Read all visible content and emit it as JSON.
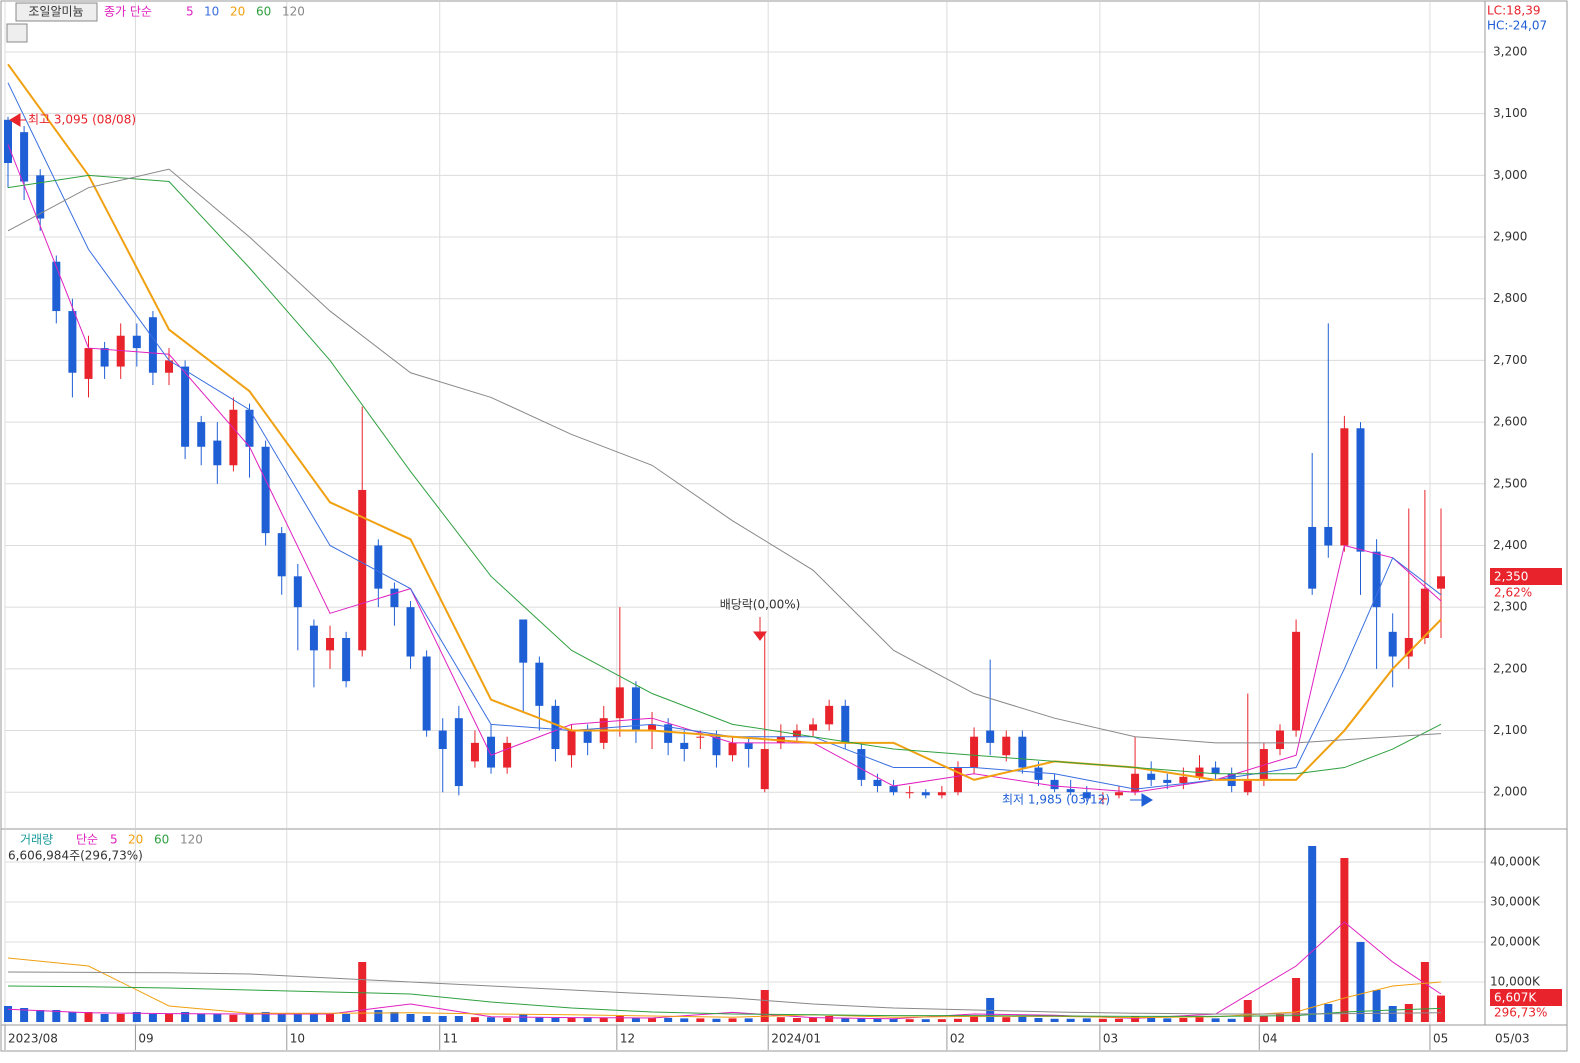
{
  "chart_data": [
    {
      "type": "candlestick",
      "title": "조일알미늄",
      "ma_label": "종가 단순",
      "up_color": "#e8232b",
      "down_color": "#1f5fd6",
      "lc_label": "LC:18,39",
      "hc_label": "HC:-24,07",
      "last_price": {
        "value": 2350,
        "label": "2,350"
      },
      "change_label": "2,62%",
      "annotations": [
        "최고 3,095 (08/08)",
        "배당락(0,00%)",
        "최저 1,985 (03/12)"
      ],
      "ylim": [
        1942,
        3281
      ],
      "yticks": [
        {
          "value": 2000,
          "label": "2,000"
        },
        {
          "value": 2100,
          "label": "2,100"
        },
        {
          "value": 2200,
          "label": "2,200"
        },
        {
          "value": 2300,
          "label": "2,300"
        },
        {
          "value": 2400,
          "label": "2,400"
        },
        {
          "value": 2500,
          "label": "2,500"
        },
        {
          "value": 2600,
          "label": "2,600"
        },
        {
          "value": 2700,
          "label": "2,700"
        },
        {
          "value": 2800,
          "label": "2,800"
        },
        {
          "value": 2900,
          "label": "2,900"
        },
        {
          "value": 3000,
          "label": "3,000"
        },
        {
          "value": 3100,
          "label": "3,100"
        },
        {
          "value": 3200,
          "label": "3,200"
        }
      ],
      "open": [
        3090,
        3070,
        3000,
        2860,
        2780,
        2670,
        2720,
        2690,
        2740,
        2770,
        2680,
        2690,
        2600,
        2570,
        2530,
        2620,
        2560,
        2420,
        2350,
        2270,
        2230,
        2250,
        2230,
        2400,
        2330,
        2300,
        2220,
        2100,
        2120,
        2050,
        2090,
        2040,
        2280,
        2210,
        2140,
        2060,
        2100,
        2080,
        2120,
        2170,
        2100,
        2110,
        2080,
        2090,
        2090,
        2060,
        2080,
        2005,
        2080,
        2090,
        2100,
        2110,
        2140,
        2070,
        2020,
        2010,
        2000,
        2000,
        1995,
        2000,
        2040,
        2100,
        2060,
        2090,
        2040,
        2020,
        2005,
        2000,
        1990,
        1995,
        2000,
        2030,
        2020,
        2015,
        2025,
        2040,
        2030,
        2000,
        2020,
        2070,
        2100,
        2430,
        2430,
        2400,
        2590,
        2390,
        2260,
        2220,
        2250,
        2330
      ],
      "high": [
        3095,
        3080,
        3010,
        2870,
        2800,
        2740,
        2730,
        2760,
        2760,
        2780,
        2720,
        2700,
        2610,
        2600,
        2640,
        2630,
        2570,
        2430,
        2370,
        2280,
        2270,
        2260,
        2625,
        2410,
        2340,
        2310,
        2230,
        2120,
        2140,
        2100,
        2110,
        2090,
        2280,
        2220,
        2150,
        2110,
        2110,
        2140,
        2300,
        2180,
        2130,
        2120,
        2100,
        2100,
        2100,
        2090,
        2090,
        2260,
        2110,
        2110,
        2120,
        2150,
        2150,
        2080,
        2030,
        2020,
        2010,
        2005,
        2010,
        2050,
        2105,
        2215,
        2100,
        2100,
        2050,
        2030,
        2020,
        2010,
        2000,
        2010,
        2090,
        2050,
        2030,
        2040,
        2060,
        2050,
        2040,
        2160,
        2080,
        2110,
        2280,
        2550,
        2760,
        2610,
        2600,
        2410,
        2290,
        2460,
        2490,
        2460
      ],
      "low": [
        2980,
        2960,
        2910,
        2760,
        2640,
        2640,
        2670,
        2670,
        2690,
        2660,
        2660,
        2540,
        2530,
        2500,
        2520,
        2510,
        2400,
        2320,
        2230,
        2170,
        2200,
        2170,
        2220,
        2300,
        2270,
        2200,
        2090,
        2000,
        1995,
        2040,
        2030,
        2030,
        2130,
        2100,
        2050,
        2040,
        2060,
        2070,
        2090,
        2080,
        2070,
        2060,
        2050,
        2070,
        2040,
        2050,
        2040,
        2000,
        2070,
        2080,
        2090,
        2100,
        2070,
        2010,
        2000,
        1995,
        1990,
        1990,
        1990,
        1995,
        2030,
        2060,
        2050,
        2030,
        2010,
        2000,
        1995,
        1985,
        1980,
        1990,
        1995,
        2010,
        2005,
        2005,
        2020,
        2020,
        2000,
        1995,
        2010,
        2060,
        2090,
        2320,
        2380,
        2390,
        2320,
        2200,
        2170,
        2200,
        2240,
        2250
      ],
      "close": [
        3020,
        2990,
        2930,
        2780,
        2680,
        2720,
        2690,
        2740,
        2720,
        2680,
        2700,
        2560,
        2560,
        2530,
        2620,
        2560,
        2420,
        2350,
        2300,
        2230,
        2250,
        2180,
        2490,
        2330,
        2300,
        2220,
        2100,
        2070,
        2010,
        2080,
        2040,
        2080,
        2210,
        2140,
        2070,
        2100,
        2080,
        2120,
        2170,
        2100,
        2110,
        2080,
        2070,
        2090,
        2060,
        2080,
        2070,
        2070,
        2090,
        2100,
        2110,
        2140,
        2080,
        2020,
        2010,
        2000,
        2000,
        1995,
        2000,
        2040,
        2090,
        2080,
        2090,
        2040,
        2020,
        2005,
        2000,
        1990,
        1990,
        2000,
        2030,
        2020,
        2015,
        2025,
        2040,
        2030,
        2010,
        2020,
        2070,
        2100,
        2260,
        2330,
        2400,
        2590,
        2390,
        2300,
        2220,
        2250,
        2330,
        2350
      ],
      "ma_x": [
        0,
        5,
        10,
        15,
        20,
        25,
        30,
        35,
        40,
        45,
        50,
        55,
        60,
        65,
        70,
        75,
        80,
        83,
        86,
        89
      ],
      "ma": [
        {
          "name": "5",
          "color": "#e020c0",
          "values": [
            3050,
            2720,
            2710,
            2560,
            2290,
            2330,
            2060,
            2110,
            2120,
            2080,
            2080,
            2010,
            2030,
            2010,
            2000,
            2020,
            2060,
            2400,
            2380,
            2310
          ]
        },
        {
          "name": "10",
          "color": "#3a6fe0",
          "values": [
            3150,
            2880,
            2700,
            2620,
            2400,
            2330,
            2110,
            2100,
            2110,
            2090,
            2090,
            2040,
            2040,
            2030,
            2005,
            2020,
            2040,
            2200,
            2380,
            2320
          ]
        },
        {
          "name": "20",
          "color": "#f0a010",
          "values": [
            3180,
            3000,
            2750,
            2650,
            2470,
            2410,
            2150,
            2100,
            2100,
            2090,
            2080,
            2080,
            2020,
            2050,
            2040,
            2020,
            2020,
            2100,
            2200,
            2280
          ]
        },
        {
          "name": "60",
          "color": "#30a040",
          "values": [
            2980,
            3000,
            2990,
            2850,
            2700,
            2520,
            2350,
            2230,
            2160,
            2110,
            2090,
            2070,
            2060,
            2050,
            2040,
            2030,
            2030,
            2040,
            2070,
            2110
          ]
        },
        {
          "name": "120",
          "color": "#888888",
          "values": [
            2910,
            2980,
            3010,
            2900,
            2780,
            2680,
            2640,
            2580,
            2530,
            2440,
            2360,
            2230,
            2160,
            2120,
            2090,
            2080,
            2080,
            2085,
            2090,
            2095
          ]
        }
      ]
    },
    {
      "type": "bar",
      "title": "거래량",
      "ma_label": "단순",
      "info": "6,606,984주(296,73%)",
      "last_volume": {
        "value": 6607,
        "label": "6,607K"
      },
      "ratio_label": "296,73%",
      "last_date": "05/03",
      "ylim": [
        0,
        47500
      ],
      "yticks": [
        {
          "value": 10000,
          "label": "10,000K"
        },
        {
          "value": 20000,
          "label": "20,000K"
        },
        {
          "value": 30000,
          "label": "30,000K"
        },
        {
          "value": 40000,
          "label": "40,000K"
        }
      ],
      "xticks": [
        {
          "value": 0,
          "label": "2023/08"
        },
        {
          "value": 8.1,
          "label": "09"
        },
        {
          "value": 17.5,
          "label": "10"
        },
        {
          "value": 27,
          "label": "11"
        },
        {
          "value": 38,
          "label": "12"
        },
        {
          "value": 47.4,
          "label": "2024/01"
        },
        {
          "value": 58.5,
          "label": "02"
        },
        {
          "value": 68,
          "label": "03"
        },
        {
          "value": 77.9,
          "label": "04"
        },
        {
          "value": 88.5,
          "label": "05"
        }
      ],
      "values": [
        4000,
        3500,
        3000,
        3000,
        2500,
        2500,
        2000,
        2000,
        2500,
        2000,
        2000,
        2500,
        2000,
        2000,
        1800,
        2000,
        2500,
        2000,
        2000,
        2000,
        2000,
        2000,
        15000,
        3000,
        2500,
        2000,
        1500,
        1500,
        1500,
        1200,
        1200,
        1000,
        2000,
        1200,
        1000,
        1000,
        1200,
        1000,
        1500,
        1000,
        1000,
        1000,
        900,
        900,
        800,
        900,
        900,
        8000,
        1200,
        1000,
        1200,
        1500,
        1000,
        900,
        800,
        800,
        700,
        700,
        700,
        800,
        1500,
        6000,
        1200,
        1500,
        1000,
        800,
        800,
        900,
        800,
        800,
        1500,
        1000,
        900,
        1000,
        1200,
        900,
        800,
        5500,
        1500,
        2000,
        11000,
        44000,
        4500,
        41000,
        20000,
        8000,
        4000,
        4500,
        15000,
        6607
      ],
      "ma_x": [
        0,
        5,
        10,
        15,
        20,
        25,
        30,
        35,
        40,
        45,
        50,
        55,
        60,
        65,
        70,
        75,
        80,
        83,
        86,
        89
      ],
      "ma": [
        {
          "name": "5",
          "color": "#e020c0",
          "values": [
            3200,
            2300,
            2100,
            2000,
            2000,
            4500,
            1300,
            1100,
            1000,
            2400,
            1100,
            800,
            2000,
            1700,
            900,
            2000,
            14000,
            25000,
            15000,
            7000
          ]
        },
        {
          "name": "20",
          "color": "#f0a010",
          "values": [
            16000,
            14000,
            4000,
            2200,
            2200,
            2300,
            2000,
            1800,
            1500,
            1200,
            1800,
            1200,
            1400,
            1400,
            1100,
            1300,
            2500,
            6000,
            9000,
            10000
          ]
        },
        {
          "name": "60",
          "color": "#30a040",
          "values": [
            9000,
            8800,
            8500,
            8000,
            7500,
            7000,
            5000,
            3500,
            2500,
            2000,
            1800,
            1600,
            1600,
            1500,
            1400,
            1400,
            1600,
            2500,
            3000,
            3400
          ]
        },
        {
          "name": "120",
          "color": "#888888",
          "values": [
            12500,
            12400,
            12300,
            12000,
            11000,
            10000,
            9000,
            8000,
            7000,
            6000,
            4500,
            3500,
            3000,
            2500,
            2200,
            2000,
            2000,
            2100,
            2200,
            2300
          ]
        }
      ]
    }
  ]
}
